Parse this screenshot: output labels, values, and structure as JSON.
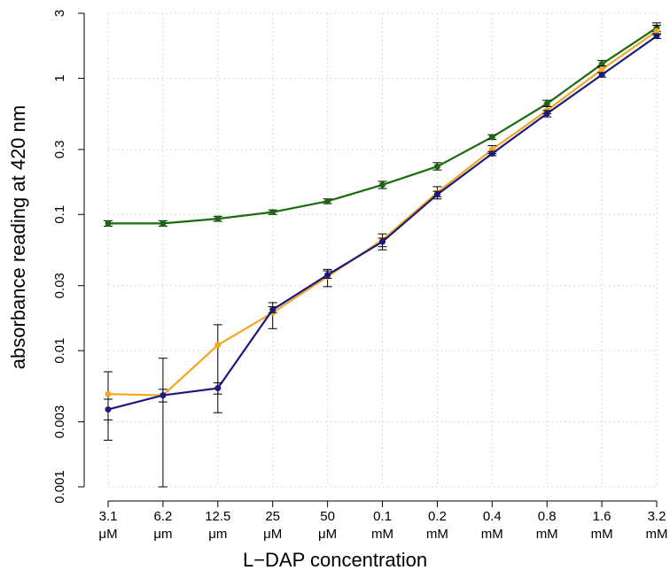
{
  "chart_data": {
    "type": "line",
    "title": "",
    "xlabel": "L−DAP concentration",
    "ylabel": "absorbance reading at 420 nm",
    "y_scale": "log",
    "ylim": [
      0.001,
      3
    ],
    "grid": true,
    "legend": "none",
    "categories": [
      {
        "line1": "3.1",
        "line2": "μM"
      },
      {
        "line1": "6.2",
        "line2": "μm"
      },
      {
        "line1": "12.5",
        "line2": "μm"
      },
      {
        "line1": "25",
        "line2": "μM"
      },
      {
        "line1": "50",
        "line2": "μM"
      },
      {
        "line1": "0.1",
        "line2": "mM"
      },
      {
        "line1": "0.2",
        "line2": "mM"
      },
      {
        "line1": "0.4",
        "line2": "mM"
      },
      {
        "line1": "0.8",
        "line2": "mM"
      },
      {
        "line1": "1.6",
        "line2": "mM"
      },
      {
        "line1": "3.2",
        "line2": "mM"
      }
    ],
    "y_ticks": [
      {
        "value": 0.001,
        "label": "0.001"
      },
      {
        "value": 0.003,
        "label": "0.003"
      },
      {
        "value": 0.01,
        "label": "0.01"
      },
      {
        "value": 0.03,
        "label": "0.03"
      },
      {
        "value": 0.1,
        "label": "0.1"
      },
      {
        "value": 0.3,
        "label": "0.3"
      },
      {
        "value": 1,
        "label": "1"
      },
      {
        "value": 3,
        "label": "3"
      }
    ],
    "series": [
      {
        "color": "#1a6b0e",
        "values": [
          0.086,
          0.086,
          0.093,
          0.104,
          0.125,
          0.165,
          0.225,
          0.37,
          0.65,
          1.27,
          2.35
        ],
        "err_low": [
          0.082,
          0.082,
          0.089,
          0.1,
          0.12,
          0.155,
          0.212,
          0.355,
          0.62,
          1.2,
          2.2
        ],
        "err_high": [
          0.09,
          0.09,
          0.097,
          0.108,
          0.13,
          0.175,
          0.24,
          0.385,
          0.69,
          1.35,
          2.55
        ]
      },
      {
        "color": "#f5a623",
        "values": [
          0.0048,
          0.0047,
          0.011,
          0.019,
          0.035,
          0.065,
          0.145,
          0.3,
          0.58,
          1.16,
          2.22
        ],
        "err_low": [
          0.0031,
          0.001,
          0.0035,
          0.0145,
          0.0295,
          0.055,
          0.13,
          0.28,
          0.55,
          1.1,
          2.1
        ],
        "err_high": [
          0.007,
          0.0088,
          0.0155,
          0.0225,
          0.0395,
          0.072,
          0.16,
          0.32,
          0.62,
          1.23,
          2.45
        ]
      },
      {
        "color": "#1a1a80",
        "values": [
          0.0037,
          0.0047,
          0.0053,
          0.02,
          0.036,
          0.063,
          0.14,
          0.28,
          0.55,
          1.06,
          2.04
        ],
        "err_low": [
          0.0022,
          0.0042,
          0.0048,
          0.019,
          0.034,
          0.058,
          0.135,
          0.27,
          0.52,
          1.02,
          1.96
        ],
        "err_high": [
          0.0044,
          0.0052,
          0.0058,
          0.021,
          0.0385,
          0.067,
          0.148,
          0.29,
          0.58,
          1.1,
          2.12
        ]
      }
    ]
  }
}
